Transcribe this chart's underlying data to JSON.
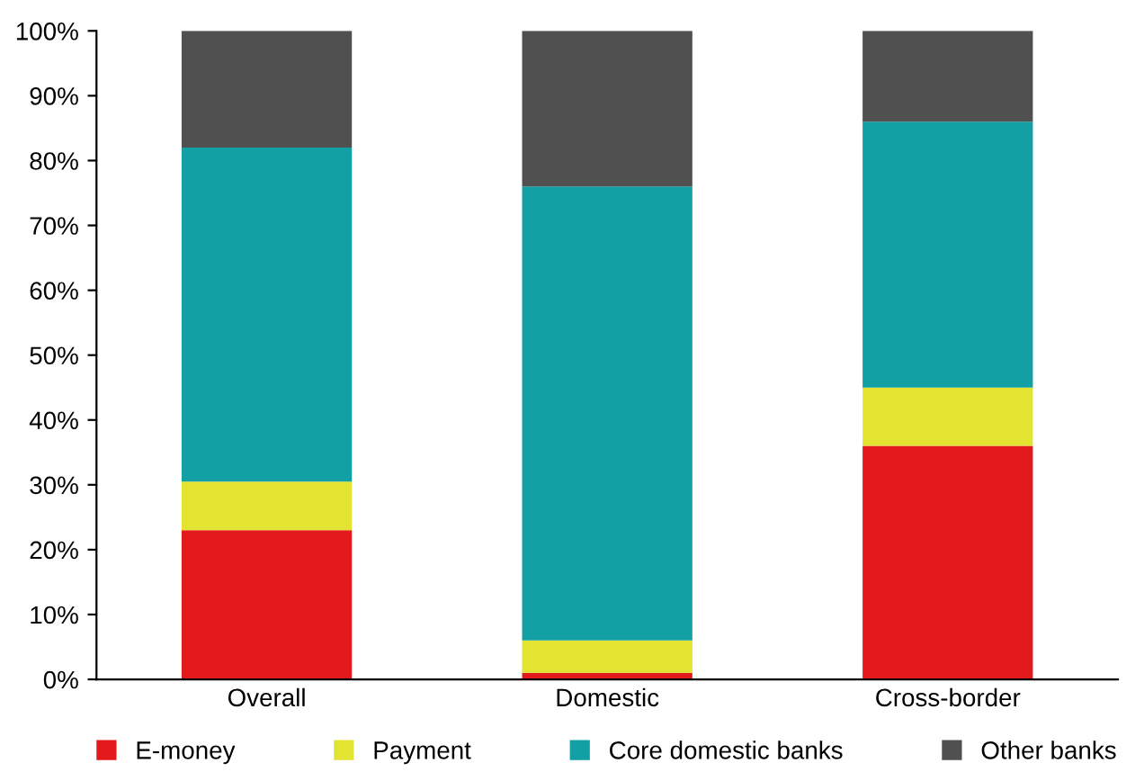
{
  "chart_data": {
    "type": "bar",
    "stacked": true,
    "categories": [
      "Overall",
      "Domestic",
      "Cross-border"
    ],
    "series": [
      {
        "name": "E-money",
        "color": "#e31a1c",
        "values": [
          23,
          1,
          36
        ]
      },
      {
        "name": "Payment",
        "color": "#e3e332",
        "values": [
          7.5,
          5,
          9
        ]
      },
      {
        "name": "Core domestic banks",
        "color": "#12a0a4",
        "values": [
          51.5,
          70,
          41
        ]
      },
      {
        "name": "Other banks",
        "color": "#505050",
        "values": [
          18,
          24,
          14
        ]
      }
    ],
    "ylim": [
      0,
      100
    ],
    "yticks": [
      {
        "value": 0,
        "label": "0%"
      },
      {
        "value": 10,
        "label": "10%"
      },
      {
        "value": 20,
        "label": "20%"
      },
      {
        "value": 30,
        "label": "30%"
      },
      {
        "value": 40,
        "label": "40%"
      },
      {
        "value": 50,
        "label": "50%"
      },
      {
        "value": 60,
        "label": "60%"
      },
      {
        "value": 70,
        "label": "70%"
      },
      {
        "value": 80,
        "label": "80%"
      },
      {
        "value": 90,
        "label": "90%"
      },
      {
        "value": 100,
        "label": "100%"
      }
    ],
    "grid": false,
    "legend": "bottom"
  }
}
